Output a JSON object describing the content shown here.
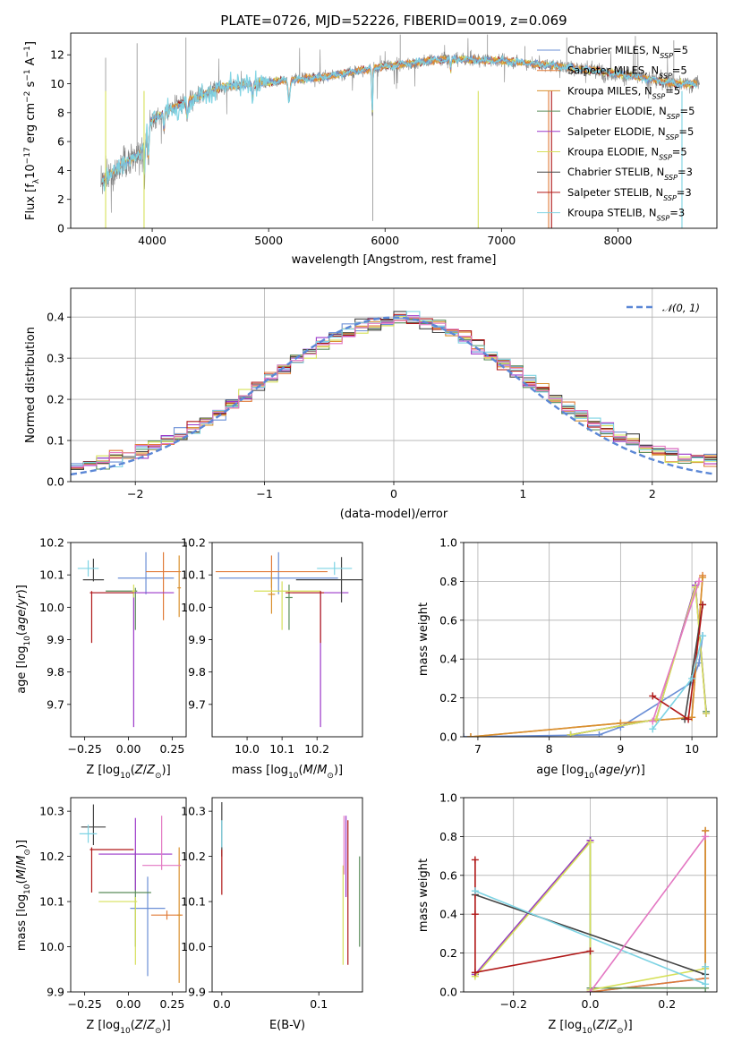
{
  "figure_title": "PLATE=0726, MJD=52226, FIBERID=0019, z=0.069",
  "colors": {
    "Chabrier MILES": "#6b8fd6",
    "Salpeter MILES": "#e07b39",
    "Kroupa MILES": "#d9912f",
    "Chabrier ELODIE": "#5a8c5a",
    "Salpeter ELODIE": "#9b38c9",
    "Kroupa ELODIE": "#d6e05a",
    "Chabrier STELIB": "#444444",
    "Salpeter STELIB": "#b01818",
    "Kroupa STELIB": "#7dd3e3",
    "pink": "#e377c2",
    "data": "#808080",
    "normal": "#5b87d6"
  },
  "legend_main": [
    {
      "text": "Chabrier MILES, N",
      "sub": "SSP",
      "end": "=5"
    },
    {
      "text": "Salpeter MILES, N",
      "sub": "SSP",
      "end": "=5"
    },
    {
      "text": "Kroupa MILES, N",
      "sub": "SSP",
      "end": "=5"
    },
    {
      "text": "Chabrier ELODIE, N",
      "sub": "SSP",
      "end": "=5"
    },
    {
      "text": "Salpeter ELODIE, N",
      "sub": "SSP",
      "end": "=5"
    },
    {
      "text": "Kroupa ELODIE, N",
      "sub": "SSP",
      "end": "=5"
    },
    {
      "text": "Chabrier STELIB, N",
      "sub": "SSP",
      "end": "=3"
    },
    {
      "text": "Salpeter STELIB, N",
      "sub": "SSP",
      "end": "=3"
    },
    {
      "text": "Kroupa STELIB, N",
      "sub": "SSP",
      "end": "=3"
    }
  ],
  "chart_data": [
    {
      "id": "spectrum",
      "type": "line",
      "title": "PLATE=0726, MJD=52226, FIBERID=0019, z=0.069",
      "xlabel": "wavelength [Angstrom, rest frame]",
      "ylabel": "Flux [fλ10⁻¹⁷ erg cm⁻² s⁻¹ A⁻¹]",
      "xlim": [
        3300,
        8850
      ],
      "ylim": [
        0,
        13.5
      ],
      "xticks": [
        4000,
        5000,
        6000,
        7000,
        8000
      ],
      "yticks": [
        0,
        2,
        4,
        6,
        8,
        10,
        12
      ],
      "grid": false,
      "legend": "top-right",
      "continuum_anchors": {
        "x": [
          3560,
          3700,
          3900,
          3990,
          4100,
          4300,
          4600,
          5000,
          5500,
          6000,
          6500,
          7000,
          7500,
          8000,
          8500
        ],
        "y": [
          3.2,
          4.2,
          5.2,
          7.5,
          8.0,
          8.8,
          9.8,
          10.1,
          10.5,
          11.2,
          11.7,
          11.6,
          11.2,
          10.7,
          10.0
        ]
      }
    },
    {
      "id": "residuals",
      "type": "histogram",
      "xlabel": "(data-model)/error",
      "ylabel": "Normed distribution",
      "xlim": [
        -2.5,
        2.5
      ],
      "ylim": [
        0,
        0.47
      ],
      "xticks": [
        -2,
        -1,
        0,
        1,
        2
      ],
      "yticks": [
        0.0,
        0.1,
        0.2,
        0.3,
        0.4
      ],
      "grid": true,
      "legend": "top-right",
      "normal_label": "𝒩(0, 1)",
      "bin_width": 0.1
    },
    {
      "id": "age_vs_Z",
      "type": "errorbar",
      "xlabel": "Z [log₁₀(Z/Z⊙)]",
      "ylabel": "age  [log₁₀(age/yr)]",
      "xlim": [
        -0.33,
        0.33
      ],
      "ylim": [
        9.6,
        10.2
      ],
      "xticks": [
        -0.25,
        0.0,
        0.25
      ],
      "yticks": [
        9.7,
        9.8,
        9.9,
        10.0,
        10.1,
        10.2
      ],
      "points": [
        {
          "c": "Chabrier MILES",
          "x": 0.1,
          "xe": [
            0.16,
            0.16
          ],
          "y": 10.09,
          "ye": [
            0.05,
            0.08
          ]
        },
        {
          "c": "Salpeter MILES",
          "x": 0.2,
          "xe": [
            0.1,
            0.1
          ],
          "y": 10.11,
          "ye": [
            0.15,
            0.06
          ]
        },
        {
          "c": "Kroupa MILES",
          "x": 0.29,
          "xe": [
            0.01,
            0.01
          ],
          "y": 10.06,
          "ye": [
            0.09,
            0.1
          ]
        },
        {
          "c": "Chabrier ELODIE",
          "x": 0.04,
          "xe": [
            0.17,
            0.01
          ],
          "y": 10.05,
          "ye": [
            0.12,
            0.01
          ]
        },
        {
          "c": "Salpeter ELODIE",
          "x": 0.03,
          "xe": [
            0.25,
            0.23
          ],
          "y": 10.045,
          "ye": [
            0.415,
            0.005
          ]
        },
        {
          "c": "Kroupa ELODIE",
          "x": 0.03,
          "xe": [
            0.01,
            0.01
          ],
          "y": 10.05,
          "ye": [
            0.02,
            0.02
          ]
        },
        {
          "c": "Chabrier STELIB",
          "x": -0.2,
          "xe": [
            0.06,
            0.06
          ],
          "y": 10.085,
          "ye": [
            0.005,
            0.065
          ]
        },
        {
          "c": "Salpeter STELIB",
          "x": -0.21,
          "xe": [
            0.01,
            0.24
          ],
          "y": 10.045,
          "ye": [
            0.155,
            0.005
          ]
        },
        {
          "c": "Kroupa STELIB",
          "x": -0.23,
          "xe": [
            0.06,
            0.06
          ],
          "y": 10.12,
          "ye": [
            0.025,
            0.025
          ]
        }
      ]
    },
    {
      "id": "age_vs_mass",
      "type": "errorbar",
      "xlabel": "mass [log₁₀(M/M⊙)]",
      "ylabel": "",
      "xlim": [
        9.9,
        10.33
      ],
      "ylim": [
        9.6,
        10.2
      ],
      "xticks": [
        10.0,
        10.1,
        10.2
      ],
      "yticks": [
        9.7,
        9.8,
        9.9,
        10.0,
        10.1,
        10.2
      ],
      "points": [
        {
          "c": "Chabrier MILES",
          "x": 10.09,
          "xe": [
            0.17,
            0.17
          ],
          "y": 10.09,
          "ye": [
            0.05,
            0.08
          ]
        },
        {
          "c": "Salpeter MILES",
          "x": 10.07,
          "xe": [
            0.16,
            0.16
          ],
          "y": 10.11,
          "ye": [
            0.05,
            0.05
          ]
        },
        {
          "c": "Kroupa MILES",
          "x": 10.07,
          "xe": [
            0.01,
            0.01
          ],
          "y": 10.04,
          "ye": [
            0.06,
            0.06
          ]
        },
        {
          "c": "Chabrier ELODIE",
          "x": 10.12,
          "xe": [
            0.01,
            0.01
          ],
          "y": 10.03,
          "ye": [
            0.1,
            0.04
          ]
        },
        {
          "c": "Salpeter ELODIE",
          "x": 10.21,
          "xe": [
            0.08,
            0.08
          ],
          "y": 10.045,
          "ye": [
            0.415,
            0.005
          ]
        },
        {
          "c": "Kroupa ELODIE",
          "x": 10.1,
          "xe": [
            0.08,
            0.11
          ],
          "y": 10.05,
          "ye": [
            0.12,
            0.03
          ]
        },
        {
          "c": "Chabrier STELIB",
          "x": 10.27,
          "xe": [
            0.13,
            0.13
          ],
          "y": 10.085,
          "ye": [
            0.07,
            0.07
          ]
        },
        {
          "c": "Salpeter STELIB",
          "x": 10.21,
          "xe": [
            0.1,
            0.01
          ],
          "y": 10.045,
          "ye": [
            0.155,
            0.005
          ]
        },
        {
          "c": "Kroupa STELIB",
          "x": 10.25,
          "xe": [
            0.05,
            0.05
          ],
          "y": 10.12,
          "ye": [
            0.02,
            0.02
          ]
        }
      ]
    },
    {
      "id": "weight_vs_age",
      "type": "line",
      "xlabel": "age  [log₁₀(age/yr)]",
      "ylabel": "mass weight",
      "xlim": [
        6.8,
        10.35
      ],
      "ylim": [
        0,
        1.0
      ],
      "xticks": [
        7,
        8,
        9,
        10
      ],
      "yticks": [
        0.0,
        0.2,
        0.4,
        0.6,
        0.8,
        1.0
      ],
      "grid": true,
      "series": [
        {
          "c": "Chabrier MILES",
          "x": [
            6.8,
            8.7,
            9.0,
            10.0,
            10.1,
            10.15
          ],
          "y": [
            0.0,
            0.01,
            0.05,
            0.28,
            0.38,
            0.52
          ]
        },
        {
          "c": "Salpeter MILES",
          "x": [
            6.9,
            9.0,
            10.0,
            10.15
          ],
          "y": [
            0.0,
            0.07,
            0.1,
            0.83
          ]
        },
        {
          "c": "Kroupa MILES",
          "x": [
            6.9,
            9.0,
            10.0,
            10.15
          ],
          "y": [
            0.0,
            0.07,
            0.1,
            0.82
          ]
        },
        {
          "c": "Chabrier ELODIE",
          "x": [
            8.3,
            9.5,
            10.05,
            10.2
          ],
          "y": [
            0.01,
            0.09,
            0.78,
            0.13
          ]
        },
        {
          "c": "Salpeter ELODIE",
          "x": [
            8.3,
            9.5,
            10.05,
            10.2
          ],
          "y": [
            0.01,
            0.09,
            0.78,
            0.12
          ]
        },
        {
          "c": "Kroupa ELODIE",
          "x": [
            8.3,
            9.5,
            10.05,
            10.2
          ],
          "y": [
            0.01,
            0.09,
            0.77,
            0.12
          ]
        },
        {
          "c": "Chabrier STELIB",
          "x": [
            9.9,
            10.15
          ],
          "y": [
            0.09,
            0.68
          ]
        },
        {
          "c": "Salpeter STELIB",
          "x": [
            9.45,
            9.95,
            10.15
          ],
          "y": [
            0.21,
            0.09,
            0.68
          ]
        },
        {
          "c": "Kroupa STELIB",
          "x": [
            9.45,
            10.0,
            10.15
          ],
          "y": [
            0.04,
            0.3,
            0.52
          ]
        },
        {
          "c": "pink",
          "x": [
            9.45,
            10.1
          ],
          "y": [
            0.08,
            0.8
          ]
        }
      ]
    },
    {
      "id": "mass_vs_Z",
      "type": "errorbar",
      "xlabel": "Z [log₁₀(Z/Z⊙)]",
      "ylabel": "mass [log₁₀(M/M⊙)]",
      "xlim": [
        -0.33,
        0.33
      ],
      "ylim": [
        9.9,
        10.33
      ],
      "xticks": [
        -0.25,
        0.0,
        0.25
      ],
      "yticks": [
        9.9,
        10.0,
        10.1,
        10.2,
        10.3
      ],
      "points": [
        {
          "c": "Chabrier MILES",
          "x": 0.11,
          "xe": [
            0.1,
            0.1
          ],
          "y": 10.085,
          "ye": [
            0.15,
            0.07
          ]
        },
        {
          "c": "Salpeter MILES",
          "x": 0.22,
          "xe": [
            0.09,
            0.09
          ],
          "y": 10.07,
          "ye": [
            0.01,
            0.01
          ]
        },
        {
          "c": "Kroupa MILES",
          "x": 0.29,
          "xe": [
            0.01,
            0.01
          ],
          "y": 10.07,
          "ye": [
            0.15,
            0.15
          ]
        },
        {
          "c": "Chabrier ELODIE",
          "x": 0.04,
          "xe": [
            0.21,
            0.09
          ],
          "y": 10.12,
          "ye": [
            0.12,
            0.09
          ]
        },
        {
          "c": "Salpeter ELODIE",
          "x": 0.04,
          "xe": [
            0.21,
            0.21
          ],
          "y": 10.205,
          "ye": [
            0.08,
            0.08
          ]
        },
        {
          "c": "Kroupa ELODIE",
          "x": 0.04,
          "xe": [
            0.21,
            0.01
          ],
          "y": 10.1,
          "ye": [
            0.14,
            0.01
          ]
        },
        {
          "c": "Chabrier STELIB",
          "x": -0.2,
          "xe": [
            0.07,
            0.07
          ],
          "y": 10.265,
          "ye": [
            0.04,
            0.05
          ]
        },
        {
          "c": "Salpeter STELIB",
          "x": -0.21,
          "xe": [
            0.01,
            0.24
          ],
          "y": 10.215,
          "ye": [
            0.095,
            0.005
          ]
        },
        {
          "c": "Kroupa STELIB",
          "x": -0.23,
          "xe": [
            0.05,
            0.05
          ],
          "y": 10.25,
          "ye": [
            0.02,
            0.02
          ]
        },
        {
          "c": "pink",
          "x": 0.19,
          "xe": [
            0.11,
            0.11
          ],
          "y": 10.18,
          "ye": [
            0.01,
            0.11
          ]
        }
      ]
    },
    {
      "id": "mass_vs_EBV",
      "type": "errorbar",
      "xlabel": "E(B-V)",
      "ylabel": "",
      "xlim": [
        -0.01,
        0.145
      ],
      "ylim": [
        9.9,
        10.33
      ],
      "xticks": [
        0.0,
        0.1
      ],
      "yticks": [
        9.9,
        10.0,
        10.1,
        10.2,
        10.3
      ],
      "points": [
        {
          "c": "Chabrier STELIB",
          "x": 0.0,
          "xe": [
            0,
            0
          ],
          "y": 10.27,
          "ye": [
            0.07,
            0.05
          ]
        },
        {
          "c": "Salpeter STELIB",
          "x": 0.0,
          "xe": [
            0,
            0
          ],
          "y": 10.215,
          "ye": [
            0.1,
            0.0
          ]
        },
        {
          "c": "Kroupa STELIB",
          "x": 0.0,
          "xe": [
            0,
            0
          ],
          "y": 10.25,
          "ye": [
            0.03,
            0.03
          ]
        },
        {
          "c": "Kroupa ELODIE",
          "x": 0.125,
          "xe": [
            0,
            0
          ],
          "y": 10.1,
          "ye": [
            0.14,
            0.08
          ]
        },
        {
          "c": "Salpeter ELODIE",
          "x": 0.128,
          "xe": [
            0,
            0
          ],
          "y": 10.2,
          "ye": [
            0.09,
            0.09
          ]
        },
        {
          "c": "pink",
          "x": 0.126,
          "xe": [
            0,
            0
          ],
          "y": 10.18,
          "ye": [
            0.02,
            0.11
          ]
        },
        {
          "c": "Salpeter STELIB",
          "x": 0.13,
          "xe": [
            0,
            0
          ],
          "y": 10.12,
          "ye": [
            0.16,
            0.16
          ]
        },
        {
          "c": "Chabrier ELODIE",
          "x": 0.142,
          "xe": [
            0,
            0
          ],
          "y": 10.1,
          "ye": [
            0.1,
            0.1
          ]
        }
      ]
    },
    {
      "id": "weight_vs_Z",
      "type": "line",
      "xlabel": "Z [log₁₀(Z/Z⊙)]",
      "ylabel": "mass weight",
      "xlim": [
        -0.33,
        0.33
      ],
      "ylim": [
        0,
        1.0
      ],
      "xticks": [
        -0.2,
        0.0,
        0.2
      ],
      "yticks": [
        0.0,
        0.2,
        0.4,
        0.6,
        0.8,
        1.0
      ],
      "grid": true,
      "series": [
        {
          "c": "Chabrier MILES",
          "x": [
            0.0,
            0.0,
            0.3,
            0.3
          ],
          "y": [
            0.78,
            0.0,
            0.07,
            0.83
          ]
        },
        {
          "c": "Salpeter MILES",
          "x": [
            0.0,
            0.3,
            0.3
          ],
          "y": [
            0.0,
            0.07,
            0.83
          ]
        },
        {
          "c": "Kroupa MILES",
          "x": [
            0.3,
            0.3
          ],
          "y": [
            0.12,
            0.83
          ]
        },
        {
          "c": "Chabrier ELODIE",
          "x": [
            -0.3,
            0.0,
            0.0,
            0.3
          ],
          "y": [
            0.09,
            0.78,
            0.02,
            0.02
          ]
        },
        {
          "c": "Salpeter ELODIE",
          "x": [
            -0.3,
            0.0
          ],
          "y": [
            0.09,
            0.78
          ]
        },
        {
          "c": "Kroupa ELODIE",
          "x": [
            -0.3,
            0.0,
            0.0,
            0.3
          ],
          "y": [
            0.08,
            0.77,
            0.01,
            0.12
          ]
        },
        {
          "c": "Chabrier STELIB",
          "x": [
            -0.3,
            0.3
          ],
          "y": [
            0.5,
            0.09
          ]
        },
        {
          "c": "Salpeter STELIB",
          "x": [
            -0.3,
            -0.3,
            -0.3,
            0.0
          ],
          "y": [
            0.68,
            0.4,
            0.1,
            0.21
          ]
        },
        {
          "c": "Kroupa STELIB",
          "x": [
            -0.3,
            0.3,
            0.3
          ],
          "y": [
            0.52,
            0.04,
            0.13
          ]
        },
        {
          "c": "pink",
          "x": [
            0.0,
            0.3
          ],
          "y": [
            0.0,
            0.8
          ]
        }
      ]
    }
  ]
}
